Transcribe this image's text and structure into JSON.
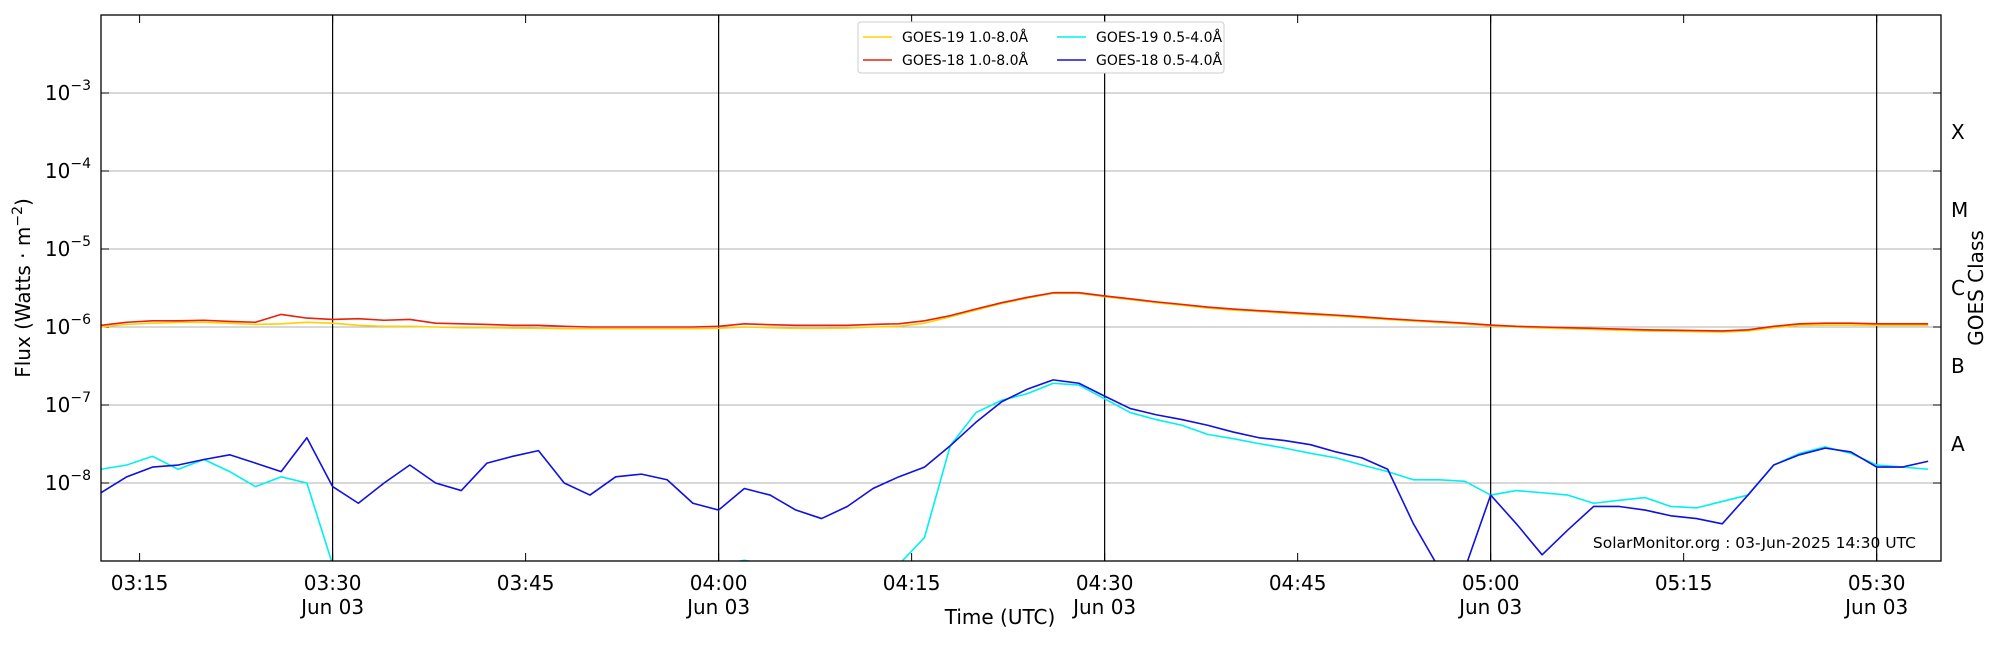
{
  "chart_data": {
    "type": "line",
    "ylog": true,
    "grid": "y",
    "legend": "upper center",
    "ylabel": "Flux (Watts · m",
    "ylabel_sup": "−2",
    "ylabel_end": ")",
    "xlabel": "Time (UTC)",
    "y2label": "GOES Class",
    "annotation": "SolarMonitor.org : 03-Jun-2025 14:30 UTC",
    "xlim": [
      "03:12",
      "05:35"
    ],
    "xticks": [
      "03:15",
      {
        "value": "03:30",
        "label": "03:30",
        "date": "Jun 03"
      },
      "03:45",
      {
        "value": "04:00",
        "label": "04:00",
        "date": "Jun 03"
      },
      "04:15",
      {
        "value": "04:30",
        "label": "04:30",
        "date": "Jun 03"
      },
      "04:45",
      {
        "value": "05:00",
        "label": "05:00",
        "date": "Jun 03"
      },
      "05:15",
      {
        "value": "05:30",
        "label": "05:30",
        "date": "Jun 03"
      }
    ],
    "ylim": [
      1e-09,
      0.01
    ],
    "yticks": [
      {
        "value": 1e-08,
        "label": "10",
        "exponent": "−8"
      },
      {
        "value": 1e-07,
        "label": "10",
        "exponent": "−7"
      },
      {
        "value": 1e-06,
        "label": "10",
        "exponent": "−6"
      },
      {
        "value": 1e-05,
        "label": "10",
        "exponent": "−5"
      },
      {
        "value": 0.0001,
        "label": "10",
        "exponent": "−4"
      },
      {
        "value": 0.001,
        "label": "10",
        "exponent": "−3"
      }
    ],
    "y2lim": [
      1e-09,
      0.01
    ],
    "y2ticks": [
      {
        "value": 3.162e-08,
        "label": "A"
      },
      {
        "value": 3.162e-07,
        "label": "B"
      },
      {
        "value": 3.162e-06,
        "label": "C"
      },
      {
        "value": 3.162e-05,
        "label": "M"
      },
      {
        "value": 0.0003162,
        "label": "X"
      }
    ],
    "x": [
      "03:12",
      "03:14",
      "03:16",
      "03:18",
      "03:20",
      "03:22",
      "03:24",
      "03:26",
      "03:28",
      "03:30",
      "03:32",
      "03:34",
      "03:36",
      "03:38",
      "03:40",
      "03:42",
      "03:44",
      "03:46",
      "03:48",
      "03:50",
      "03:52",
      "03:54",
      "03:56",
      "03:58",
      "04:00",
      "04:02",
      "04:04",
      "04:06",
      "04:08",
      "04:10",
      "04:12",
      "04:14",
      "04:16",
      "04:18",
      "04:20",
      "04:22",
      "04:24",
      "04:26",
      "04:28",
      "04:30",
      "04:32",
      "04:34",
      "04:36",
      "04:38",
      "04:40",
      "04:42",
      "04:44",
      "04:46",
      "04:48",
      "04:50",
      "04:52",
      "04:54",
      "04:56",
      "04:58",
      "05:00",
      "05:02",
      "05:04",
      "05:06",
      "05:08",
      "05:10",
      "05:12",
      "05:14",
      "05:16",
      "05:18",
      "05:20",
      "05:22",
      "05:24",
      "05:26",
      "05:28",
      "05:30",
      "05:32",
      "05:34"
    ],
    "series": [
      {
        "name": "GOES-19 1.0-8.0Å",
        "color": "#ffd000",
        "values": [
          1e-06,
          1.08e-06,
          1.12e-06,
          1.15e-06,
          1.15e-06,
          1.12e-06,
          1.08e-06,
          1.1e-06,
          1.15e-06,
          1.12e-06,
          1.05e-06,
          1.02e-06,
          1.02e-06,
          1e-06,
          9.8e-07,
          9.8e-07,
          9.7e-07,
          9.6e-07,
          9.5e-07,
          9.5e-07,
          9.5e-07,
          9.5e-07,
          9.5e-07,
          9.5e-07,
          9.6e-07,
          1e-06,
          9.8e-07,
          9.6e-07,
          9.6e-07,
          9.7e-07,
          1e-06,
          1.02e-06,
          1.12e-06,
          1.35e-06,
          1.65e-06,
          2e-06,
          2.35e-06,
          2.7e-06,
          2.7e-06,
          2.45e-06,
          2.25e-06,
          2.05e-06,
          1.9e-06,
          1.75e-06,
          1.65e-06,
          1.58e-06,
          1.5e-06,
          1.44e-06,
          1.38e-06,
          1.31e-06,
          1.25e-06,
          1.19e-06,
          1.14e-06,
          1.09e-06,
          1.03e-06,
          1e-06,
          9.7e-07,
          9.5e-07,
          9.3e-07,
          9.1e-07,
          8.9e-07,
          8.8e-07,
          8.7e-07,
          8.6e-07,
          8.9e-07,
          9.8e-07,
          1.05e-06,
          1.06e-06,
          1.06e-06,
          1.05e-06,
          1.05e-06,
          1.05e-06
        ]
      },
      {
        "name": "GOES-18 1.0-8.0Å",
        "color": "#e8200c",
        "values": [
          1.05e-06,
          1.15e-06,
          1.2e-06,
          1.2e-06,
          1.22e-06,
          1.18e-06,
          1.15e-06,
          1.45e-06,
          1.3e-06,
          1.25e-06,
          1.28e-06,
          1.22e-06,
          1.25e-06,
          1.12e-06,
          1.1e-06,
          1.08e-06,
          1.05e-06,
          1.05e-06,
          1.02e-06,
          1e-06,
          1e-06,
          1e-06,
          1e-06,
          1e-06,
          1.02e-06,
          1.1e-06,
          1.07e-06,
          1.05e-06,
          1.05e-06,
          1.05e-06,
          1.08e-06,
          1.1e-06,
          1.2e-06,
          1.4e-06,
          1.7e-06,
          2.05e-06,
          2.4e-06,
          2.75e-06,
          2.75e-06,
          2.5e-06,
          2.3e-06,
          2.1e-06,
          1.95e-06,
          1.8e-06,
          1.7e-06,
          1.62e-06,
          1.55e-06,
          1.48e-06,
          1.42e-06,
          1.35e-06,
          1.28e-06,
          1.22e-06,
          1.17e-06,
          1.12e-06,
          1.06e-06,
          1.02e-06,
          1e-06,
          9.8e-07,
          9.6e-07,
          9.4e-07,
          9.2e-07,
          9.1e-07,
          9e-07,
          8.9e-07,
          9.2e-07,
          1.02e-06,
          1.1e-06,
          1.12e-06,
          1.12e-06,
          1.1e-06,
          1.1e-06,
          1.1e-06
        ]
      },
      {
        "name": "GOES-19 0.5-4.0Å",
        "color": "#00f0f0",
        "values": [
          1.5e-08,
          1.7e-08,
          2.2e-08,
          1.5e-08,
          2e-08,
          1.4e-08,
          9e-09,
          1.2e-08,
          1e-08,
          9e-10,
          9e-10,
          9e-10,
          9e-10,
          9e-10,
          9e-10,
          9e-10,
          9e-10,
          9e-10,
          9e-10,
          9e-10,
          9e-10,
          9e-10,
          9e-10,
          9e-10,
          9e-10,
          1.02e-09,
          9e-10,
          9e-10,
          9e-10,
          9e-10,
          9e-10,
          9e-10,
          2e-09,
          3e-08,
          8e-08,
          1.15e-07,
          1.4e-07,
          1.9e-07,
          1.8e-07,
          1.2e-07,
          8e-08,
          6.5e-08,
          5.5e-08,
          4.2e-08,
          3.7e-08,
          3.2e-08,
          2.8e-08,
          2.4e-08,
          2.1e-08,
          1.7e-08,
          1.4e-08,
          1.1e-08,
          1.1e-08,
          1.05e-08,
          7e-09,
          8e-09,
          7.5e-09,
          7e-09,
          5.5e-09,
          6e-09,
          6.5e-09,
          5e-09,
          4.8e-09,
          5.8e-09,
          7e-09,
          1.7e-08,
          2.4e-08,
          2.9e-08,
          2.4e-08,
          1.7e-08,
          1.6e-08,
          1.5e-08
        ]
      },
      {
        "name": "GOES-18 0.5-4.0Å",
        "color": "#1010e0",
        "values": [
          7.5e-09,
          1.2e-08,
          1.6e-08,
          1.7e-08,
          2e-08,
          2.3e-08,
          1.8e-08,
          1.4e-08,
          3.8e-08,
          9e-09,
          5.5e-09,
          1e-08,
          1.7e-08,
          1e-08,
          8e-09,
          1.8e-08,
          2.2e-08,
          2.6e-08,
          1e-08,
          7e-09,
          1.2e-08,
          1.3e-08,
          1.1e-08,
          5.5e-09,
          4.5e-09,
          8.5e-09,
          7e-09,
          4.5e-09,
          3.5e-09,
          5e-09,
          8.5e-09,
          1.2e-08,
          1.6e-08,
          3e-08,
          6e-08,
          1.1e-07,
          1.6e-07,
          2.1e-07,
          1.9e-07,
          1.3e-07,
          9e-08,
          7.5e-08,
          6.5e-08,
          5.5e-08,
          4.5e-08,
          3.8e-08,
          3.5e-08,
          3.1e-08,
          2.5e-08,
          2.1e-08,
          1.5e-08,
          3e-09,
          8e-10,
          8e-10,
          7e-09,
          3e-09,
          1.2e-09,
          2.5e-09,
          5e-09,
          5e-09,
          4.5e-09,
          3.8e-09,
          3.5e-09,
          3e-09,
          7e-09,
          1.7e-08,
          2.3e-08,
          2.8e-08,
          2.5e-08,
          1.6e-08,
          1.6e-08,
          1.9e-08
        ]
      }
    ]
  }
}
